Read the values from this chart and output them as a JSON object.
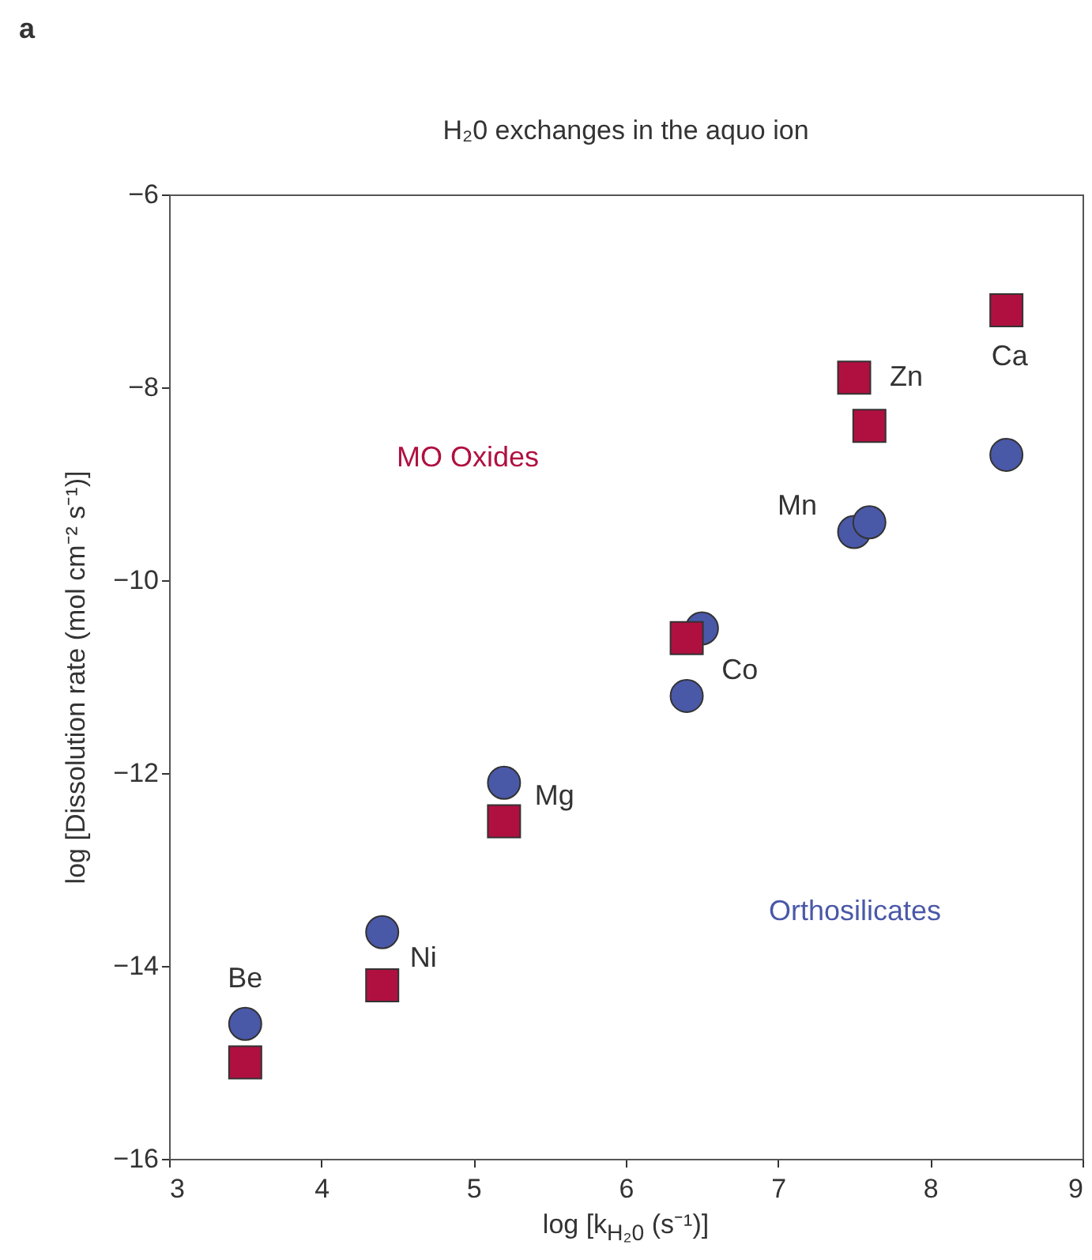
{
  "chart_data": {
    "type": "scatter",
    "title": "H₂0 exchanges in the aquo ion",
    "xlabel": "log [k$_{H₂0}$ (s⁻¹)]",
    "ylabel": "log [Dissolution rate (mol cm⁻² s⁻¹)]",
    "series": [
      {
        "name": "Orthosilicates",
        "color": "#4a58a8",
        "marker": "circle",
        "x": [
          3.5,
          4.4,
          5.2,
          6.4,
          6.5,
          7.5,
          7.6,
          8.5
        ],
        "values": [
          -14.6,
          -13.65,
          -12.1,
          -11.2,
          -10.5,
          -9.5,
          -9.4,
          -8.7
        ]
      },
      {
        "name": "MO Oxides",
        "color": "#b01040",
        "marker": "square",
        "x": [
          3.5,
          4.4,
          5.2,
          6.4,
          7.5,
          7.6,
          8.5
        ],
        "values": [
          -15.0,
          -14.2,
          -12.5,
          -10.6,
          -7.9,
          -8.4,
          -7.2
        ]
      }
    ],
    "annotations": [
      "a",
      {
        "text": "Be",
        "x": 3.5,
        "y": -14.6
      },
      {
        "text": "Ni",
        "x": 4.4,
        "y": -13.65
      },
      {
        "text": "Mg",
        "x": 5.2,
        "y": -12.1
      },
      {
        "text": "Co",
        "x": 6.5,
        "y": -10.5
      },
      {
        "text": "Mn",
        "x": 7.5,
        "y": -9.5
      },
      {
        "text": "Zn",
        "x": 7.5,
        "y": -7.9
      },
      {
        "text": "Ca",
        "x": 8.5,
        "y": -7.2
      }
    ],
    "xlim": [
      3,
      9
    ],
    "ylim": [
      -16,
      -6
    ],
    "xticks": [
      3,
      4,
      5,
      6,
      7,
      8,
      9
    ],
    "yticks": [
      -16,
      -14,
      -12,
      -10,
      -8,
      -6
    ],
    "grid": false,
    "legend": false
  }
}
